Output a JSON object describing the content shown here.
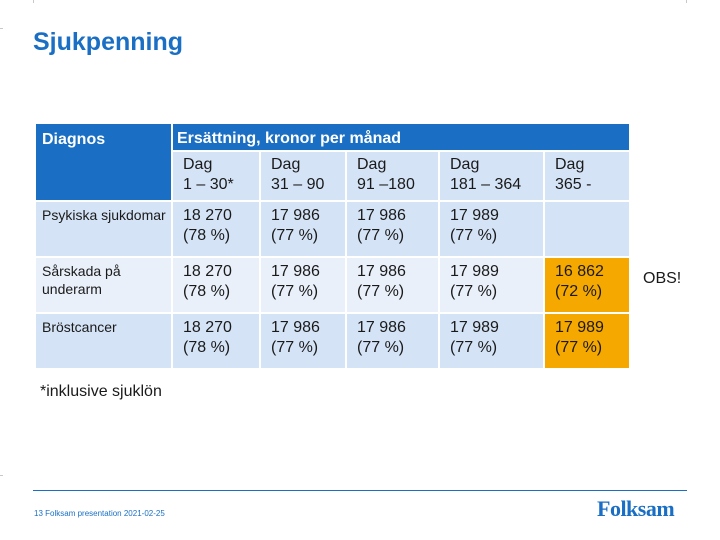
{
  "title": "Sjukpenning",
  "table": {
    "diag_header": "Diagnos",
    "comp_header": "Ersättning, kronor per månad",
    "periods": [
      {
        "l1": "Dag",
        "l2": "1 – 30*"
      },
      {
        "l1": "Dag",
        "l2": "31 – 90"
      },
      {
        "l1": "Dag",
        "l2": "91 –180"
      },
      {
        "l1": "Dag",
        "l2": "181 – 364"
      },
      {
        "l1": "Dag",
        "l2": "365 -"
      }
    ],
    "rows": [
      {
        "label": "Psykiska sjukdomar",
        "cells": [
          {
            "amount": "18 270",
            "pct": "(78 %)"
          },
          {
            "amount": "17 986",
            "pct": "(77 %)"
          },
          {
            "amount": "17 986",
            "pct": "(77 %)"
          },
          {
            "amount": "17 989",
            "pct": "(77 %)"
          },
          {
            "amount": "",
            "pct": ""
          }
        ]
      },
      {
        "label": "Sårskada på underarm",
        "cells": [
          {
            "amount": "18 270",
            "pct": "(78 %)"
          },
          {
            "amount": "17 986",
            "pct": "(77 %)"
          },
          {
            "amount": "17 986",
            "pct": "(77 %)"
          },
          {
            "amount": "17 989",
            "pct": "(77 %)"
          },
          {
            "amount": "16 862",
            "pct": "(72 %)"
          }
        ]
      },
      {
        "label": "Bröstcancer",
        "cells": [
          {
            "amount": "18 270",
            "pct": "(78 %)"
          },
          {
            "amount": "17 986",
            "pct": "(77 %)"
          },
          {
            "amount": "17 986",
            "pct": "(77 %)"
          },
          {
            "amount": "17 989",
            "pct": "(77 %)"
          },
          {
            "amount": "17 989",
            "pct": "(77 %)"
          }
        ]
      }
    ]
  },
  "obs": "OBS!",
  "footnote": "*inklusive sjuklön",
  "footer": {
    "page": "13",
    "text": "Folksam presentation",
    "date": "2021-02-25"
  },
  "logo": "Folksam",
  "colors": {
    "brand": "#1a6fc4",
    "highlight": "#f5a800",
    "row_light": "#d4e3f6",
    "row_lighter": "#e9f0fa"
  }
}
